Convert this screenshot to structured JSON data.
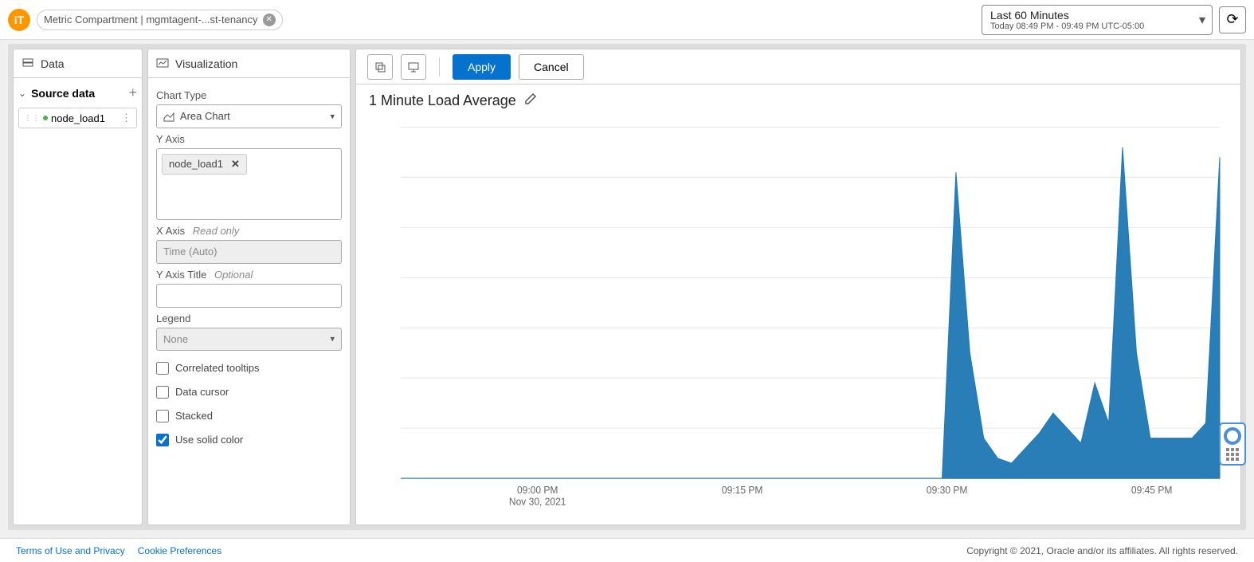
{
  "header": {
    "logo_text": "iT",
    "filter_label": "Metric Compartment | mgmtagent-...st-tenancy",
    "time_range_title": "Last 60 Minutes",
    "time_range_subtitle": "Today 08:49 PM - 09:49 PM UTC-05:00"
  },
  "data_panel": {
    "title": "Data",
    "section_label": "Source data",
    "item_name": "node_load1"
  },
  "viz_panel": {
    "title": "Visualization",
    "chart_type_label": "Chart Type",
    "chart_type_value": "Area Chart",
    "y_axis_label": "Y Axis",
    "y_axis_chip": "node_load1",
    "x_axis_label": "X Axis",
    "x_axis_hint": "Read only",
    "x_axis_value": "Time (Auto)",
    "y_axis_title_label": "Y Axis Title",
    "y_axis_title_hint": "Optional",
    "y_axis_title_value": "",
    "legend_label": "Legend",
    "legend_value": "None",
    "cb_correlated": "Correlated tooltips",
    "cb_datacursor": "Data cursor",
    "cb_stacked": "Stacked",
    "cb_solid": "Use solid color"
  },
  "toolbar": {
    "apply": "Apply",
    "cancel": "Cancel"
  },
  "chart": {
    "title": "1 Minute Load Average",
    "type": "area",
    "color": "#1f77b4",
    "background": "#ffffff",
    "grid_color": "#e8e8e8",
    "ylim": [
      0.0,
      0.7
    ],
    "ytick_step": 0.1,
    "y_ticks": [
      "0.0",
      "0.1",
      "0.2",
      "0.3",
      "0.4",
      "0.5",
      "0.6",
      "0.7"
    ],
    "x_ticks": [
      {
        "pos": 0.167,
        "label": "09:00 PM",
        "sublabel": "Nov 30, 2021"
      },
      {
        "pos": 0.417,
        "label": "09:15 PM"
      },
      {
        "pos": 0.667,
        "label": "09:30 PM"
      },
      {
        "pos": 0.917,
        "label": "09:45 PM"
      }
    ],
    "data_points_60min_0_to_1": [
      0,
      0,
      0,
      0,
      0,
      0,
      0,
      0,
      0,
      0,
      0,
      0,
      0,
      0,
      0,
      0,
      0,
      0,
      0,
      0,
      0,
      0,
      0,
      0,
      0,
      0,
      0,
      0,
      0,
      0,
      0,
      0,
      0,
      0,
      0,
      0,
      0,
      0,
      0,
      0,
      0.61,
      0.25,
      0.08,
      0.04,
      0.03,
      0.06,
      0.09,
      0.13,
      0.1,
      0.07,
      0.19,
      0.11,
      0.66,
      0.25,
      0.08,
      0.08,
      0.08,
      0.08,
      0.11,
      0.64
    ]
  },
  "footer": {
    "link1": "Terms of Use and Privacy",
    "link2": "Cookie Preferences",
    "copyright": "Copyright © 2021, Oracle and/or its affiliates. All rights reserved."
  }
}
